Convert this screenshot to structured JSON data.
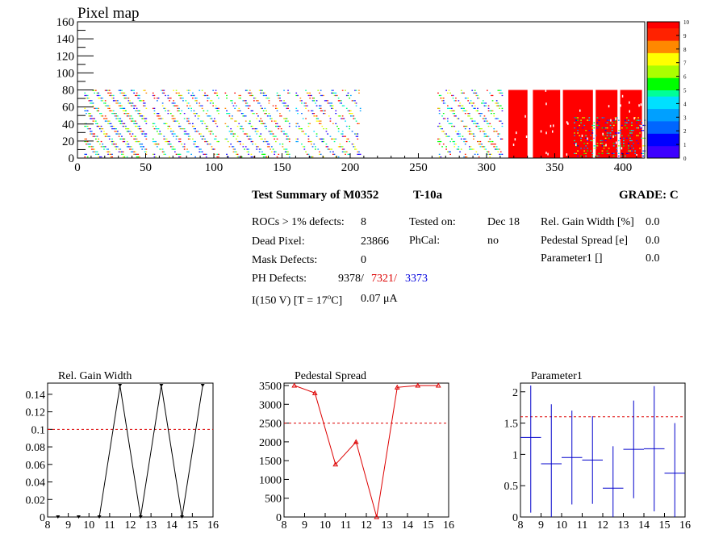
{
  "pixel_map": {
    "title": "Pixel map",
    "x_ticks": [
      "0",
      "50",
      "100",
      "150",
      "200",
      "250",
      "300",
      "350",
      "400"
    ],
    "y_ticks": [
      "0",
      "20",
      "40",
      "60",
      "80",
      "100",
      "120",
      "140",
      "160"
    ],
    "palette_ticks": [
      "0",
      "1",
      "2",
      "3",
      "4",
      "5",
      "6",
      "7",
      "8",
      "9",
      "10"
    ],
    "palette_colors": [
      "#3d00ff",
      "#0000ff",
      "#0066ff",
      "#00a0ff",
      "#00e0ff",
      "#00ff99",
      "#00ff00",
      "#aaff00",
      "#ffff00",
      "#ff8800",
      "#ff2200",
      "#ff0000"
    ]
  },
  "summary": {
    "title": "Test Summary of M0352",
    "temp": "T-10a",
    "grade": "GRADE:  C",
    "rocs_label": "ROCs > 1% defects:",
    "rocs_value": "8",
    "tested_label": "Tested on:",
    "tested_value": "Dec 18",
    "gain_label": "Rel. Gain Width [%]",
    "gain_value": "0.0",
    "dead_label": "Dead Pixel:",
    "dead_value": "23866",
    "phcal_label": "PhCal:",
    "phcal_value": "no",
    "ped_label": "Pedestal Spread [e]",
    "ped_value": "0.0",
    "mask_label": "Mask Defects:",
    "mask_value": "0",
    "param_label": "Parameter1 []",
    "param_value": "0.0",
    "ph_label": "PH Defects:",
    "ph_v1": "9378/",
    "ph_v2": "7321/",
    "ph_v3": "3373",
    "current_label": "I(150 V) [T = 17",
    "current_sup": "o",
    "current_tail": "C]",
    "current_value": "0.07",
    "current_unit": "μA"
  },
  "chart_data": [
    {
      "type": "line",
      "title": "Rel. Gain Width",
      "x": [
        8.5,
        9.5,
        10.5,
        11.5,
        12.5,
        13.5,
        14.5,
        15.5
      ],
      "values": [
        0,
        0,
        0,
        0.15,
        0,
        0.15,
        0,
        0.15
      ],
      "xlim": [
        8,
        16
      ],
      "ylim": [
        0,
        0.15
      ],
      "x_ticks": [
        8,
        9,
        10,
        11,
        12,
        13,
        14,
        15,
        16
      ],
      "y_ticks": [
        0,
        0.02,
        0.04,
        0.06,
        0.08,
        0.1,
        0.12,
        0.14
      ],
      "y_tick_labels": [
        "0",
        "0.02",
        "0.04",
        "0.06",
        "0.08",
        "0.1",
        "0.12",
        "0.14"
      ],
      "threshold": 0.1,
      "color": "#000000"
    },
    {
      "type": "line",
      "title": "Pedestal Spread",
      "x": [
        8.5,
        9.5,
        10.5,
        11.5,
        12.5,
        13.5,
        14.5,
        15.5
      ],
      "values": [
        3500,
        3300,
        1400,
        2000,
        0,
        3450,
        3500,
        3500
      ],
      "xlim": [
        8,
        16
      ],
      "ylim": [
        0,
        3500
      ],
      "x_ticks": [
        8,
        9,
        10,
        11,
        12,
        13,
        14,
        15,
        16
      ],
      "y_ticks": [
        0,
        500,
        1000,
        1500,
        2000,
        2500,
        3000,
        3500
      ],
      "y_tick_labels": [
        "0",
        "500",
        "1000",
        "1500",
        "2000",
        "2500",
        "3000",
        "3500"
      ],
      "threshold": 2500,
      "color": "#dd0000"
    },
    {
      "type": "scatter",
      "title": "Parameter1",
      "x": [
        8.5,
        9.5,
        10.5,
        11.5,
        12.5,
        13.5,
        14.5,
        15.5
      ],
      "values": [
        1.27,
        0.85,
        0.95,
        0.91,
        0.46,
        1.08,
        1.09,
        0.7
      ],
      "errors": [
        1.2,
        0.95,
        0.75,
        0.7,
        0.67,
        0.78,
        1.0,
        0.8
      ],
      "xlim": [
        8,
        16
      ],
      "ylim": [
        0,
        2.1
      ],
      "x_ticks": [
        8,
        9,
        10,
        11,
        12,
        13,
        14,
        15,
        16
      ],
      "y_ticks": [
        0,
        0.5,
        1,
        1.5,
        2
      ],
      "y_tick_labels": [
        "0",
        "0.5",
        "1",
        "1.5",
        "2"
      ],
      "threshold": 1.6,
      "color": "#0000cc"
    }
  ]
}
